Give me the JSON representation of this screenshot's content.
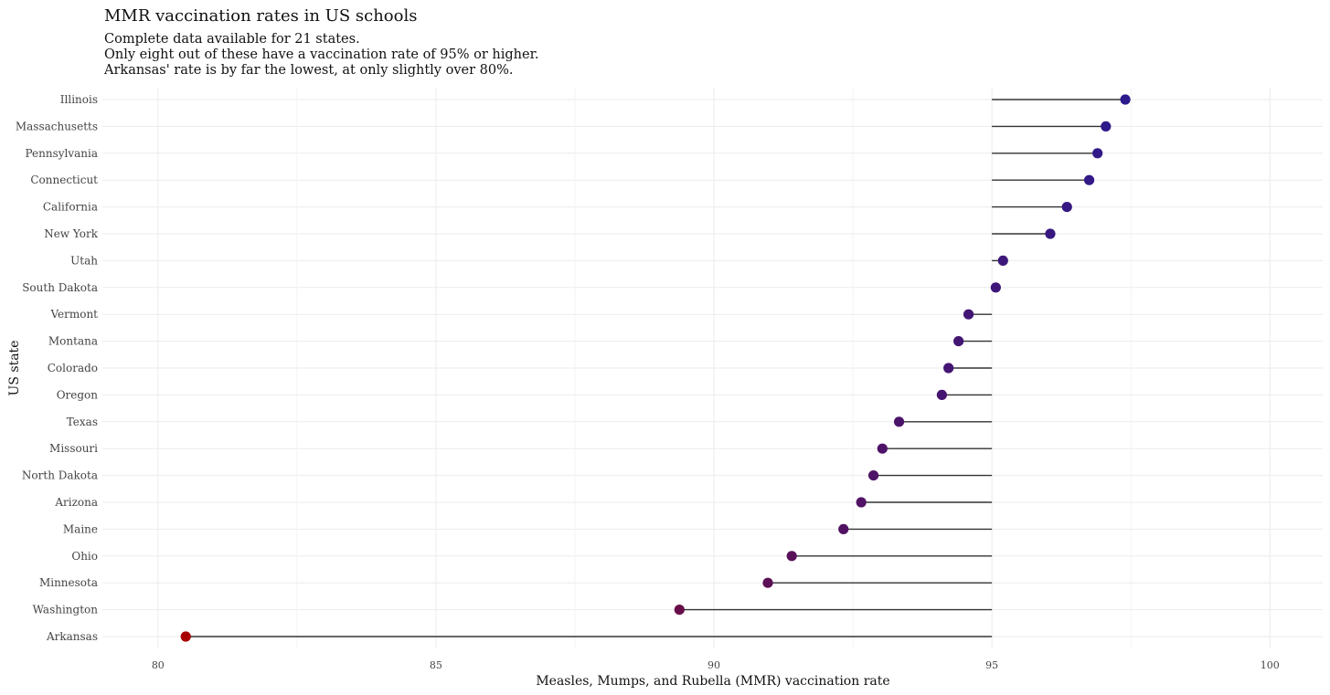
{
  "chart_data": {
    "type": "scatter",
    "title": "MMR vaccination rates in US schools",
    "subtitle_lines": [
      "Complete data available for 21 states.",
      "Only eight out of these have a vaccination rate of 95% or higher.",
      "Arkansas' rate is by far the lowest, at only slightly over 80%."
    ],
    "xlabel": "Measles, Mumps, and Rubella (MMR) vaccination rate",
    "ylabel": "US state",
    "xlim": [
      79,
      100.95
    ],
    "x_ticks": [
      80,
      85,
      90,
      95,
      100
    ],
    "x_tick_labels": [
      "80",
      "85",
      "90",
      "95",
      "100"
    ],
    "reference_value": 95,
    "grid": true,
    "legend": "none",
    "colors": {
      "high": "#2d1a8c",
      "low": "#a80000",
      "segment": "#333333"
    },
    "categories": [
      "Illinois",
      "Massachusetts",
      "Pennsylvania",
      "Connecticut",
      "California",
      "New York",
      "Utah",
      "South Dakota",
      "Vermont",
      "Montana",
      "Colorado",
      "Oregon",
      "Texas",
      "Missouri",
      "North Dakota",
      "Arizona",
      "Maine",
      "Ohio",
      "Minnesota",
      "Washington",
      "Arkansas"
    ],
    "values": [
      97.4,
      97.05,
      96.9,
      96.75,
      96.35,
      96.05,
      95.2,
      95.07,
      94.58,
      94.4,
      94.22,
      94.1,
      93.33,
      93.03,
      92.87,
      92.65,
      92.33,
      91.4,
      90.97,
      89.38,
      80.5
    ]
  }
}
